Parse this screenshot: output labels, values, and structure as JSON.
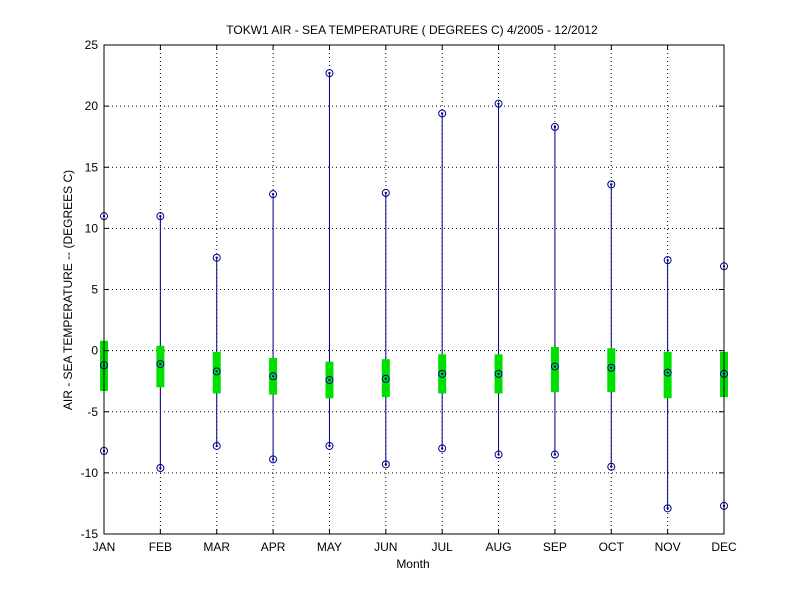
{
  "chart_data": {
    "type": "boxplot-range",
    "title": "TOKW1  AIR - SEA TEMPERATURE ( DEGREES C) 4/2005 - 12/2012",
    "xlabel": "Month",
    "ylabel": "AIR - SEA TEMPERATURE -- (DEGREES C)",
    "ylim": [
      -15,
      25
    ],
    "yticks": [
      "25",
      "20",
      "15",
      "10",
      "5",
      "0",
      "-5",
      "-10",
      "-15"
    ],
    "ytick_values": [
      25,
      20,
      15,
      10,
      5,
      0,
      -5,
      -10,
      -15
    ],
    "grid": true,
    "grid_style": "dotted",
    "categories": [
      "JAN",
      "FEB",
      "MAR",
      "APR",
      "MAY",
      "JUN",
      "JUL",
      "AUG",
      "SEP",
      "OCT",
      "NOV",
      "DEC"
    ],
    "series": [
      {
        "min": [
          -8.2,
          -9.6,
          -7.8,
          -8.9,
          -7.8,
          -9.3,
          -8.0,
          -8.5,
          -8.5,
          -9.5,
          -12.9,
          -12.7
        ],
        "max": [
          11.0,
          11.0,
          7.6,
          12.8,
          22.7,
          12.9,
          19.4,
          20.2,
          18.3,
          13.6,
          7.4,
          6.9
        ],
        "mean": [
          -1.2,
          -1.1,
          -1.7,
          -2.1,
          -2.4,
          -2.3,
          -1.9,
          -1.9,
          -1.3,
          -1.4,
          -1.8,
          -1.9
        ],
        "q_low": [
          -3.3,
          -3.0,
          -3.5,
          -3.6,
          -3.9,
          -3.8,
          -3.5,
          -3.5,
          -3.4,
          -3.4,
          -3.9,
          -3.8
        ],
        "q_high": [
          0.8,
          0.4,
          -0.1,
          -0.6,
          -0.9,
          -0.7,
          -0.3,
          -0.3,
          0.3,
          0.2,
          -0.1,
          -0.1
        ]
      }
    ],
    "colors": {
      "whisker": "#00008B",
      "box": "#00E000",
      "marker": "#00008B",
      "axis": "#000000",
      "grid": "#000000"
    }
  }
}
